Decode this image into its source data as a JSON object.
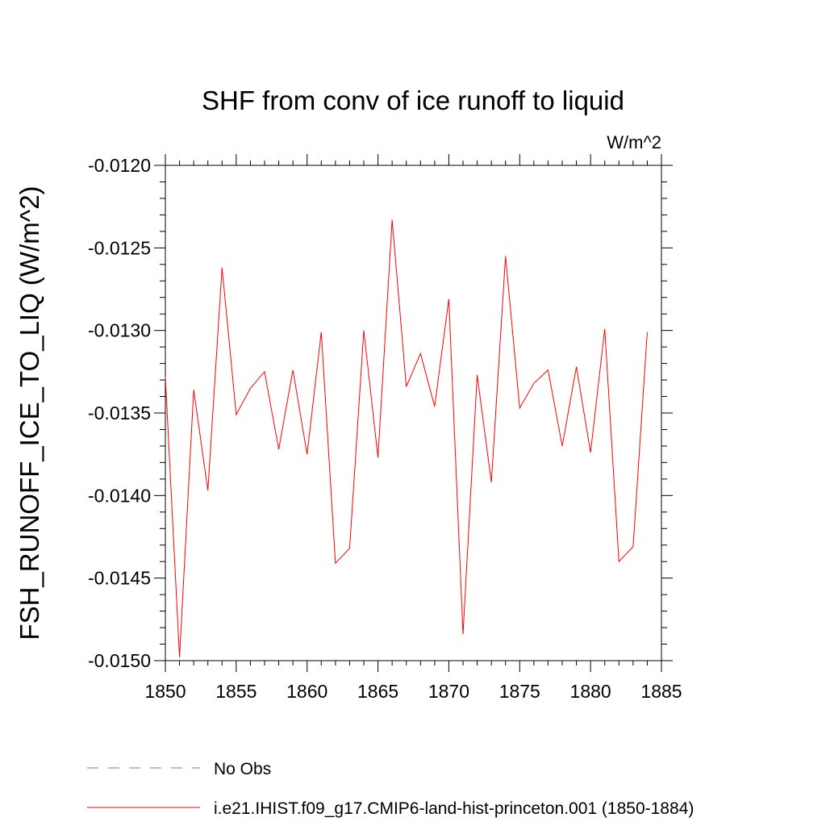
{
  "chart_data": {
    "type": "line",
    "title": "SHF from conv of ice runoff to liquid",
    "units_label": "W/m^2",
    "ylabel": "FSH_RUNOFF_ICE_TO_LIQ  (W/m^2)",
    "xlabel": "",
    "xlim": [
      1850,
      1885
    ],
    "ylim": [
      -0.015,
      -0.012
    ],
    "x_ticks": [
      1850,
      1855,
      1860,
      1865,
      1870,
      1875,
      1880,
      1885
    ],
    "x_tick_labels": [
      "1850",
      "1855",
      "1860",
      "1865",
      "1870",
      "1875",
      "1880",
      "1885"
    ],
    "y_ticks": [
      -0.012,
      -0.0125,
      -0.013,
      -0.0135,
      -0.014,
      -0.0145,
      -0.015
    ],
    "y_tick_labels": [
      "-0.0120",
      "-0.0125",
      "-0.0130",
      "-0.0135",
      "-0.0140",
      "-0.0145",
      "-0.0150"
    ],
    "grid": false,
    "legend_position": "bottom",
    "series": [
      {
        "name": "i.e21.IHIST.f09_g17.CMIP6-land-hist-princeton.001 (1850-1884)",
        "color": "#ff0000",
        "style": "solid",
        "x": [
          1850,
          1851,
          1852,
          1853,
          1854,
          1855,
          1856,
          1857,
          1858,
          1859,
          1860,
          1861,
          1862,
          1863,
          1864,
          1865,
          1866,
          1867,
          1868,
          1869,
          1870,
          1871,
          1872,
          1873,
          1874,
          1875,
          1876,
          1877,
          1878,
          1879,
          1880,
          1881,
          1882,
          1883,
          1884
        ],
        "y": [
          -0.01328,
          -0.01498,
          -0.01336,
          -0.01397,
          -0.01262,
          -0.01351,
          -0.01335,
          -0.01325,
          -0.01372,
          -0.01324,
          -0.01375,
          -0.01301,
          -0.01441,
          -0.01432,
          -0.013,
          -0.01377,
          -0.01233,
          -0.01334,
          -0.01314,
          -0.01346,
          -0.01281,
          -0.01484,
          -0.01327,
          -0.01392,
          -0.01255,
          -0.01347,
          -0.01332,
          -0.01324,
          -0.0137,
          -0.01322,
          -0.01374,
          -0.01299,
          -0.0144,
          -0.01431,
          -0.01301
        ]
      }
    ],
    "legend": [
      {
        "label": "No Obs",
        "color": "#7a6fb8",
        "style": "dashed"
      },
      {
        "label": "i.e21.IHIST.f09_g17.CMIP6-land-hist-princeton.001 (1850-1884)",
        "color": "#ff0000",
        "style": "solid"
      }
    ]
  }
}
